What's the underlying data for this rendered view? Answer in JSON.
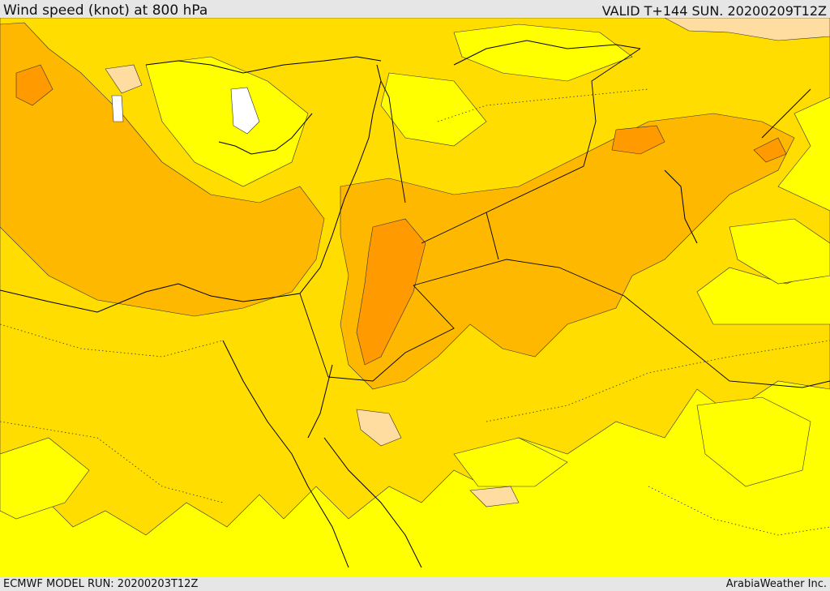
{
  "header": {
    "title": "Wind speed (knot) at 800 hPa",
    "valid": "VALID T+144 SUN. 20200209T12Z"
  },
  "footer": {
    "model_run": "ECMWF MODEL RUN: 20200203T12Z",
    "credit": "ArabiaWeather Inc."
  },
  "colors": {
    "band_low": "#ffff00",
    "band_mid": "#ffdd00",
    "band_high": "#ffb800",
    "band_peak": "#ff9a00",
    "band_calm": "#ffffff",
    "band_light": "#ffdca0",
    "borders": "#000000"
  }
}
